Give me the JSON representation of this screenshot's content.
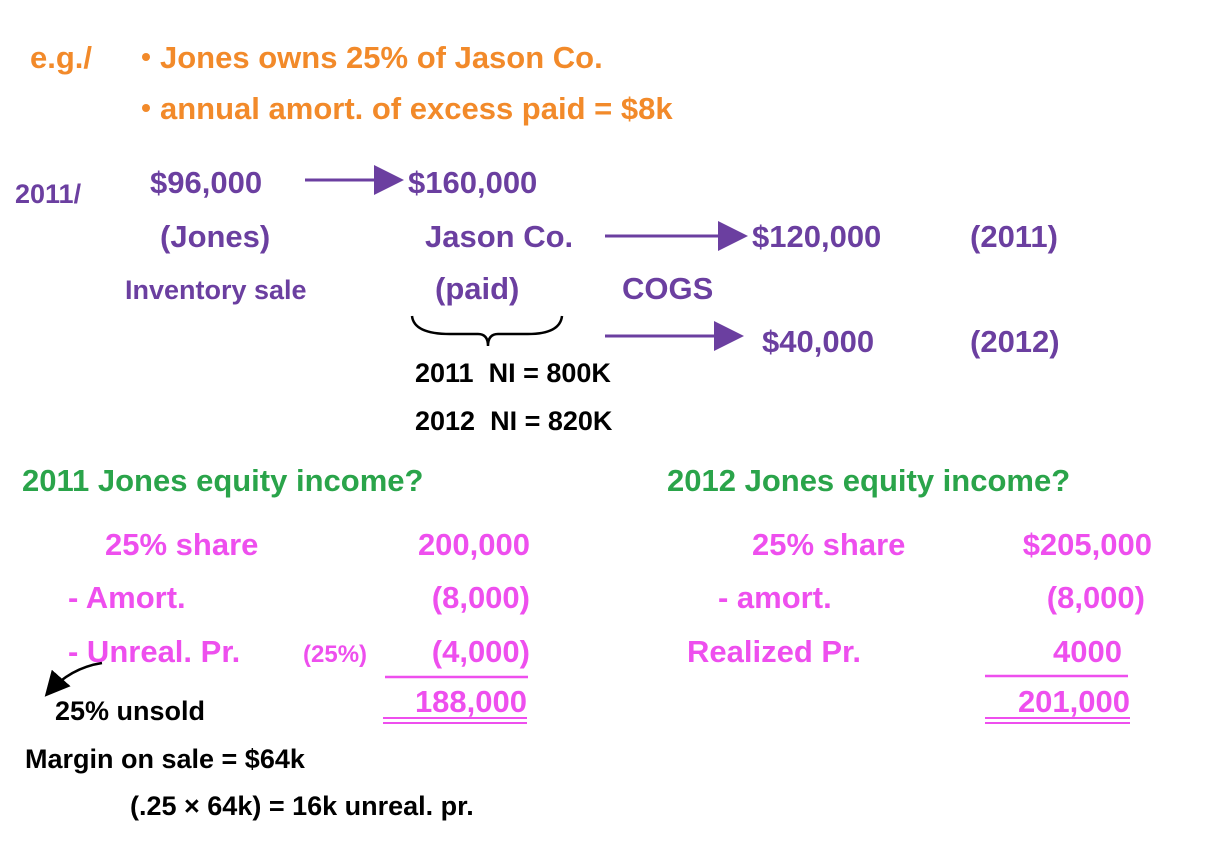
{
  "example": {
    "label": "e.g./",
    "bullets": [
      "Jones owns 25% of Jason Co.",
      "annual amort. of excess paid = $8k"
    ]
  },
  "flow": {
    "year": "2011/",
    "cost": "$96,000",
    "seller": "(Jones)",
    "sale": "Inventory sale",
    "price": "$160,000",
    "buyer": "Jason Co.",
    "paid": "(paid)",
    "cogs_label": "COGS",
    "cogs_2011": "$120,000",
    "cogs_2011_year": "(2011)",
    "cogs_2012": "$40,000",
    "cogs_2012_year": "(2012)"
  },
  "net_income": [
    "2011  NI = 800K",
    "2012  NI = 820K"
  ],
  "left": {
    "title": "2011 Jones equity income?",
    "share_label": "25% share",
    "share": "200,000",
    "amort_label": "- Amort.",
    "amort": "(8,000)",
    "unreal_label": "- Unreal. Pr.",
    "unreal_pct": "(25%)",
    "unreal": "(4,000)",
    "total": "188,000",
    "note": "25% unsold"
  },
  "margin": [
    "Margin on sale = $64k",
    "(.25 × 64k) = 16k unreal. pr."
  ],
  "right": {
    "title": "2012 Jones equity income?",
    "share_label": "25% share",
    "share": "$205,000",
    "amort_label": "- amort.",
    "amort": "(8,000)",
    "realized_label": "Realized Pr.",
    "realized": "4000",
    "total": "201,000"
  }
}
